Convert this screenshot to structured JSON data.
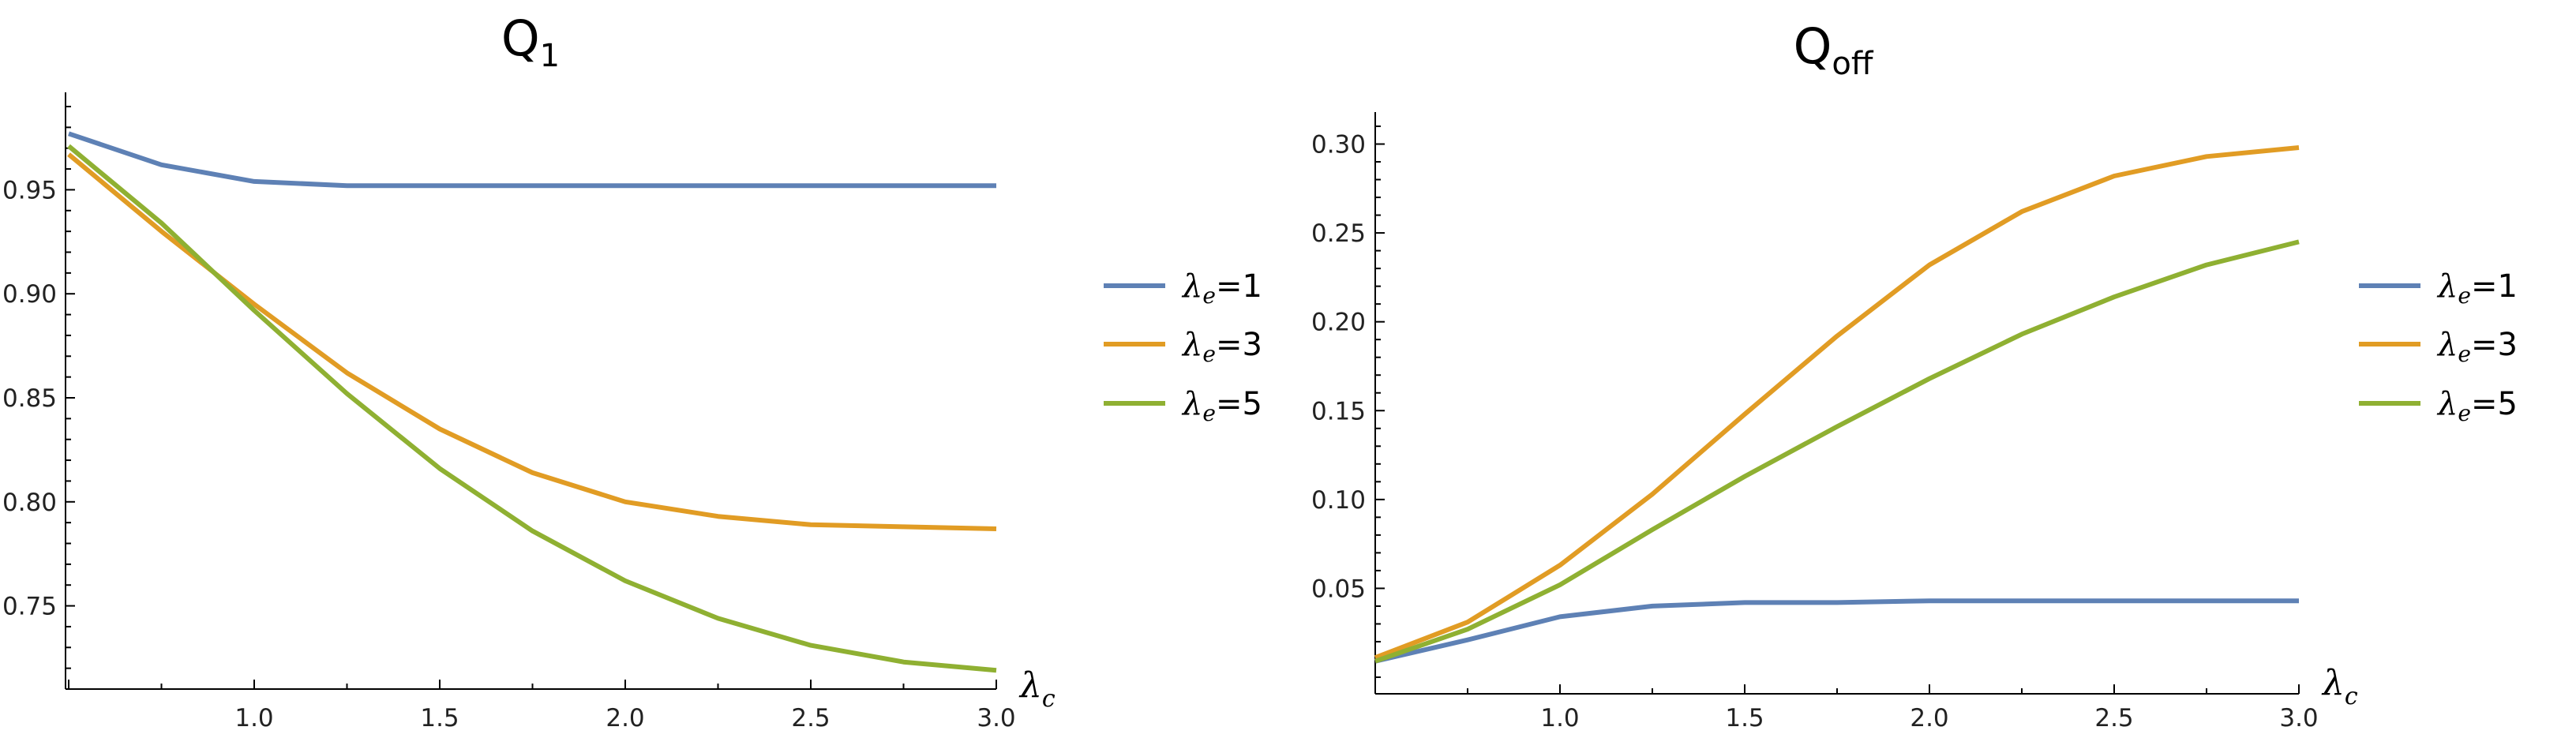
{
  "colors": {
    "blue": "#5E81B5",
    "orange": "#E19C24",
    "green": "#8FB032"
  },
  "chart_data": [
    {
      "type": "line",
      "title": {
        "main": "Q",
        "sub": "1"
      },
      "xlabel": {
        "main": "λ",
        "sub": "c"
      },
      "ylabel": "",
      "xlim": [
        0.5,
        3.0
      ],
      "ylim": [
        0.71,
        0.99
      ],
      "xticks": [
        1.0,
        1.5,
        2.0,
        2.5,
        3.0
      ],
      "xtick_labels": [
        "1.0",
        "1.5",
        "2.0",
        "2.5",
        "3.0"
      ],
      "yticks": [
        0.75,
        0.8,
        0.85,
        0.9,
        0.95
      ],
      "ytick_labels": [
        "0.75",
        "0.80",
        "0.85",
        "0.90",
        "0.95"
      ],
      "legend_position": "right",
      "x": [
        0.5,
        0.75,
        1.0,
        1.25,
        1.5,
        1.75,
        2.0,
        2.25,
        2.5,
        2.75,
        3.0
      ],
      "series": [
        {
          "name": "λe=1",
          "label_main": "λ",
          "label_sub": "e",
          "label_rest": "=1",
          "color": "#5E81B5",
          "values": [
            0.977,
            0.962,
            0.954,
            0.952,
            0.952,
            0.952,
            0.952,
            0.952,
            0.952,
            0.952,
            0.952
          ]
        },
        {
          "name": "λe=3",
          "label_main": "λ",
          "label_sub": "e",
          "label_rest": "=3",
          "color": "#E19C24",
          "values": [
            0.967,
            0.93,
            0.895,
            0.862,
            0.835,
            0.814,
            0.8,
            0.793,
            0.789,
            0.788,
            0.787
          ]
        },
        {
          "name": "λe=5",
          "label_main": "λ",
          "label_sub": "e",
          "label_rest": "=5",
          "color": "#8FB032",
          "values": [
            0.971,
            0.934,
            0.892,
            0.852,
            0.816,
            0.786,
            0.762,
            0.744,
            0.731,
            0.723,
            0.719
          ]
        }
      ]
    },
    {
      "type": "line",
      "title": {
        "main": "Q",
        "sub": "off"
      },
      "xlabel": {
        "main": "λ",
        "sub": "c"
      },
      "ylabel": "",
      "xlim": [
        0.5,
        3.0
      ],
      "ylim": [
        0.0,
        0.31
      ],
      "xticks": [
        1.0,
        1.5,
        2.0,
        2.5,
        3.0
      ],
      "xtick_labels": [
        "1.0",
        "1.5",
        "2.0",
        "2.5",
        "3.0"
      ],
      "yticks": [
        0.05,
        0.1,
        0.15,
        0.2,
        0.25,
        0.3
      ],
      "ytick_labels": [
        "0.05",
        "0.10",
        "0.15",
        "0.20",
        "0.25",
        "0.30"
      ],
      "legend_position": "right",
      "x": [
        0.5,
        0.75,
        1.0,
        1.25,
        1.5,
        1.75,
        2.0,
        2.25,
        2.5,
        2.75,
        3.0
      ],
      "series": [
        {
          "name": "λe=1",
          "label_main": "λ",
          "label_sub": "e",
          "label_rest": "=1",
          "color": "#5E81B5",
          "values": [
            0.009,
            0.021,
            0.034,
            0.04,
            0.042,
            0.042,
            0.043,
            0.043,
            0.043,
            0.043,
            0.043
          ]
        },
        {
          "name": "λe=3",
          "label_main": "λ",
          "label_sub": "e",
          "label_rest": "=3",
          "color": "#E19C24",
          "values": [
            0.011,
            0.031,
            0.063,
            0.103,
            0.148,
            0.192,
            0.232,
            0.262,
            0.282,
            0.293,
            0.298
          ]
        },
        {
          "name": "λe=5",
          "label_main": "λ",
          "label_sub": "e",
          "label_rest": "=5",
          "color": "#8FB032",
          "values": [
            0.009,
            0.027,
            0.052,
            0.083,
            0.113,
            0.141,
            0.168,
            0.193,
            0.214,
            0.232,
            0.245
          ]
        }
      ]
    }
  ]
}
